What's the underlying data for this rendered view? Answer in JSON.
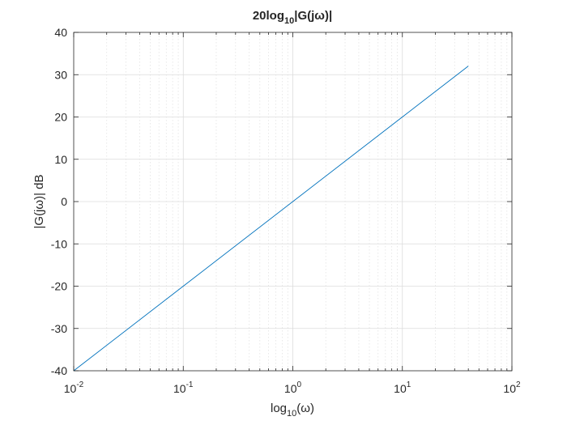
{
  "chart_data": {
    "type": "line",
    "title_main": "20log",
    "title_sub": "10",
    "title_rest": "|G(jω)|",
    "xlabel_main": "log",
    "xlabel_sub": "10",
    "xlabel_rest": "(ω)",
    "ylabel": "|G(jω)| dB",
    "xscale": "log",
    "xlim": [
      0.01,
      100
    ],
    "ylim": [
      -40,
      40
    ],
    "x_ticks": [
      {
        "base": "10",
        "exp": "-2"
      },
      {
        "base": "10",
        "exp": "-1"
      },
      {
        "base": "10",
        "exp": "0"
      },
      {
        "base": "10",
        "exp": "1"
      },
      {
        "base": "10",
        "exp": "2"
      }
    ],
    "y_ticks": [
      "-40",
      "-30",
      "-20",
      "-10",
      "0",
      "10",
      "20",
      "30",
      "40"
    ],
    "grid": true,
    "minor_grid": true,
    "line_color": "#0072BD",
    "series": [
      {
        "x": [
          0.01,
          0.1,
          1,
          10,
          40
        ],
        "y": [
          -40,
          -20,
          0,
          20,
          32.04
        ]
      }
    ]
  }
}
